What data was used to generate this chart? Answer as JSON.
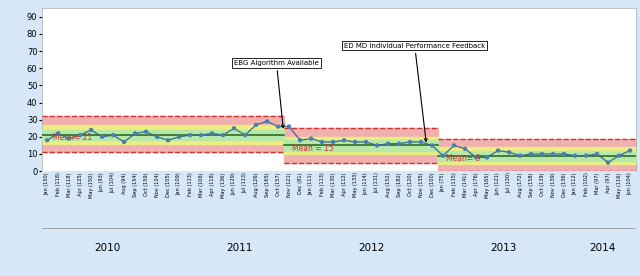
{
  "title": "",
  "ylabel": "",
  "xlabel": "",
  "ylim": [
    0,
    95
  ],
  "yticks": [
    0,
    10,
    20,
    30,
    40,
    50,
    60,
    70,
    80,
    90
  ],
  "bg_color": "#d6e8f7",
  "plot_bg_color": "#ffffff",
  "annotations": [
    {
      "text": "EBG Algorithm Available",
      "xi": 22,
      "yi": 23,
      "xt": 17,
      "yt": 62
    },
    {
      "text": "ED MD Individual Performance Feedback",
      "xi": 35,
      "yi": 15,
      "xt": 27,
      "yt": 72
    }
  ],
  "segments": [
    {
      "mean": 21,
      "ucl": 32,
      "lcl": 11,
      "warn_upper": 27,
      "warn_lower": 16,
      "start": 0,
      "end": 22,
      "mean_label": "Mean= 21",
      "mean_label_xi": 0.5,
      "mean_label_yi": 18
    },
    {
      "mean": 15,
      "ucl": 25,
      "lcl": 5,
      "warn_upper": 20,
      "warn_lower": 10,
      "start": 22,
      "end": 36,
      "mean_label": "Mean = 15",
      "mean_label_xi": 22.3,
      "mean_label_yi": 12
    },
    {
      "mean": 9,
      "ucl": 19,
      "lcl": 0,
      "warn_upper": 14,
      "warn_lower": 4,
      "start": 36,
      "end": 54,
      "mean_label": "Mean= 9",
      "mean_label_xi": 36.3,
      "mean_label_yi": 6
    }
  ],
  "x_labels": [
    "Jan (150)",
    "Feb (118)",
    "Mar (118)",
    "Apr (125)",
    "May (150)",
    "Jun (93)",
    "Jul (104)",
    "Aug (94)",
    "Sep (154)",
    "Oct (159)",
    "Nov (124)",
    "Dec (105)",
    "Jan (109)",
    "Feb (113)",
    "Mar (106)",
    "Apr (118)",
    "May (136)",
    "Jun (129)",
    "Jul (113)",
    "Aug (126)",
    "Sep (165)",
    "Oct (157)",
    "Nov (121)",
    "Dec (81)",
    "Jan (111)",
    "Feb (113)",
    "Mar (130)",
    "Apr (112)",
    "May (133)",
    "Jun (114)",
    "Jul (131)",
    "Aug (152)",
    "Sep (182)",
    "Oct (120)",
    "Nov (135)",
    "Dec (100)",
    "Jan (75)",
    "Feb (115)",
    "Mar (141)",
    "Apr (176)",
    "May (165)",
    "Jun (121)",
    "Jul (130)",
    "Aug (172)",
    "Sep (158)",
    "Oct (139)",
    "Nov (139)",
    "Dec (136)",
    "Jan (112)",
    "Feb (102)",
    "Mar (97)",
    "Apr (97)",
    "May (116)",
    "Jun (104)"
  ],
  "year_ticks": [
    {
      "label": "2010",
      "x": 5.5
    },
    {
      "label": "2011",
      "x": 17.5
    },
    {
      "label": "2012",
      "x": 29.5
    },
    {
      "label": "2013",
      "x": 41.5
    },
    {
      "label": "2014",
      "x": 50.5
    }
  ],
  "data_values": [
    18,
    22,
    19,
    21,
    24,
    20,
    21,
    17,
    22,
    23,
    20,
    18,
    20,
    21,
    21,
    22,
    21,
    25,
    21,
    27,
    29,
    26,
    26,
    18,
    19,
    17,
    17,
    18,
    17,
    17,
    15,
    16,
    16,
    17,
    17,
    15,
    9,
    15,
    13,
    8,
    8,
    12,
    11,
    9,
    10,
    10,
    10,
    10,
    9,
    9,
    10,
    5,
    9,
    12
  ],
  "line_color": "#3a6b8a",
  "marker_color": "#4a80b0",
  "mean_line_color": "#2d6a2d",
  "ucl_dash_color": "#cc3333",
  "band_pink": "#f0b0b0",
  "band_yellow": "#eded80",
  "band_green": "#b8e8a8"
}
